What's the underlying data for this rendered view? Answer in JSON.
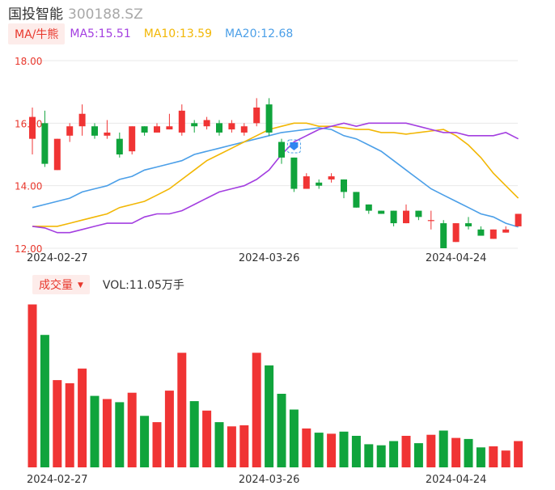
{
  "header": {
    "name": "国投智能",
    "code": "300188.SZ"
  },
  "ma_legend": {
    "tag": "MA/牛熊",
    "ma5": "MA5:15.51",
    "ma10": "MA10:13.59",
    "ma20": "MA20:12.68"
  },
  "volume_legend": {
    "tag": "成交量",
    "value": "VOL:11.05万手"
  },
  "colors": {
    "up": "#f03434",
    "down": "#10a43c",
    "ma5": "#a33ee0",
    "ma10": "#f2b705",
    "ma20": "#4b9fe8",
    "grid": "#e8e8e8",
    "axis_text": "#e8372c"
  },
  "chart_data": {
    "type": "candlestick",
    "y_ticks": [
      "18.00",
      "16.00",
      "14.00",
      "12.00"
    ],
    "ylim": [
      12,
      18
    ],
    "x_tick_labels": [
      {
        "label": "2024-02-27",
        "index": 2
      },
      {
        "label": "2024-03-26",
        "index": 19
      },
      {
        "label": "2024-04-24",
        "index": 34
      }
    ],
    "candles": [
      [
        15.5,
        16.2,
        16.5,
        15.0
      ],
      [
        16.0,
        14.7,
        16.4,
        14.6
      ],
      [
        14.5,
        15.5,
        15.5,
        14.5
      ],
      [
        15.6,
        15.9,
        16.0,
        15.4
      ],
      [
        15.9,
        16.3,
        16.6,
        15.6
      ],
      [
        15.9,
        15.6,
        16.0,
        15.5
      ],
      [
        15.6,
        15.7,
        16.1,
        15.5
      ],
      [
        15.5,
        15.0,
        15.7,
        14.9
      ],
      [
        15.1,
        15.9,
        15.9,
        15.0
      ],
      [
        15.9,
        15.7,
        15.9,
        15.6
      ],
      [
        15.7,
        15.9,
        16.0,
        15.7
      ],
      [
        15.8,
        15.9,
        16.3,
        15.8
      ],
      [
        15.7,
        16.4,
        16.6,
        15.6
      ],
      [
        16.0,
        15.9,
        16.1,
        15.7
      ],
      [
        15.9,
        16.1,
        16.2,
        15.8
      ],
      [
        16.0,
        15.7,
        16.1,
        15.6
      ],
      [
        15.8,
        16.0,
        16.1,
        15.7
      ],
      [
        15.7,
        15.9,
        16.0,
        15.6
      ],
      [
        16.0,
        16.5,
        16.8,
        15.9
      ],
      [
        16.6,
        15.7,
        16.8,
        15.6
      ],
      [
        15.4,
        14.9,
        15.5,
        14.7
      ],
      [
        14.9,
        13.9,
        14.9,
        13.8
      ],
      [
        13.9,
        14.3,
        14.4,
        13.9
      ],
      [
        14.1,
        14.0,
        14.2,
        13.9
      ],
      [
        14.2,
        14.3,
        14.4,
        14.1
      ],
      [
        14.2,
        13.8,
        14.2,
        13.6
      ],
      [
        13.8,
        13.3,
        13.8,
        13.3
      ],
      [
        13.4,
        13.2,
        13.4,
        13.1
      ],
      [
        13.2,
        13.1,
        13.2,
        13.1
      ],
      [
        13.2,
        12.8,
        13.2,
        12.7
      ],
      [
        12.8,
        13.2,
        13.4,
        12.8
      ],
      [
        13.2,
        13.0,
        13.2,
        12.9
      ],
      [
        12.9,
        12.9,
        13.2,
        12.6
      ],
      [
        12.8,
        12.0,
        12.9,
        12.0
      ],
      [
        12.2,
        12.8,
        12.8,
        12.2
      ],
      [
        12.8,
        12.7,
        13.0,
        12.6
      ],
      [
        12.6,
        12.4,
        12.7,
        12.4
      ],
      [
        12.3,
        12.6,
        12.6,
        12.3
      ],
      [
        12.5,
        12.6,
        12.7,
        12.5
      ],
      [
        12.7,
        13.1,
        13.1,
        12.7
      ]
    ],
    "volume": [
      155,
      126,
      83,
      80,
      94,
      68,
      65,
      62,
      71,
      49,
      43,
      73,
      109,
      63,
      54,
      43,
      39,
      40,
      109,
      97,
      70,
      55,
      37,
      33,
      32,
      34,
      30,
      22,
      21,
      25,
      30,
      23,
      31,
      35,
      28,
      27,
      19,
      20,
      16,
      25
    ],
    "volume_ylim": [
      0,
      160
    ],
    "ma5": [
      12.7,
      12.65,
      12.5,
      12.5,
      12.6,
      12.7,
      12.8,
      12.8,
      12.8,
      13.0,
      13.1,
      13.1,
      13.2,
      13.4,
      13.6,
      13.8,
      13.9,
      14.0,
      14.2,
      14.5,
      15.0,
      15.4,
      15.6,
      15.8,
      15.9,
      16.0,
      15.9,
      16.0,
      16.0,
      16.0,
      16.0,
      15.9,
      15.8,
      15.7,
      15.7,
      15.6,
      15.6,
      15.6,
      15.7,
      15.5
    ],
    "ma10": [
      12.7,
      12.7,
      12.7,
      12.8,
      12.9,
      13.0,
      13.1,
      13.3,
      13.4,
      13.5,
      13.7,
      13.9,
      14.2,
      14.5,
      14.8,
      15.0,
      15.2,
      15.4,
      15.6,
      15.8,
      15.9,
      16.0,
      16.0,
      15.9,
      15.9,
      15.85,
      15.8,
      15.8,
      15.7,
      15.7,
      15.65,
      15.7,
      15.75,
      15.8,
      15.6,
      15.3,
      14.9,
      14.4,
      14.0,
      13.6
    ],
    "ma20": [
      13.3,
      13.4,
      13.5,
      13.6,
      13.8,
      13.9,
      14.0,
      14.2,
      14.3,
      14.5,
      14.6,
      14.7,
      14.8,
      15.0,
      15.1,
      15.2,
      15.3,
      15.4,
      15.5,
      15.6,
      15.7,
      15.75,
      15.8,
      15.85,
      15.8,
      15.6,
      15.5,
      15.3,
      15.1,
      14.8,
      14.5,
      14.2,
      13.9,
      13.7,
      13.5,
      13.3,
      13.1,
      13.0,
      12.8,
      12.68
    ]
  }
}
